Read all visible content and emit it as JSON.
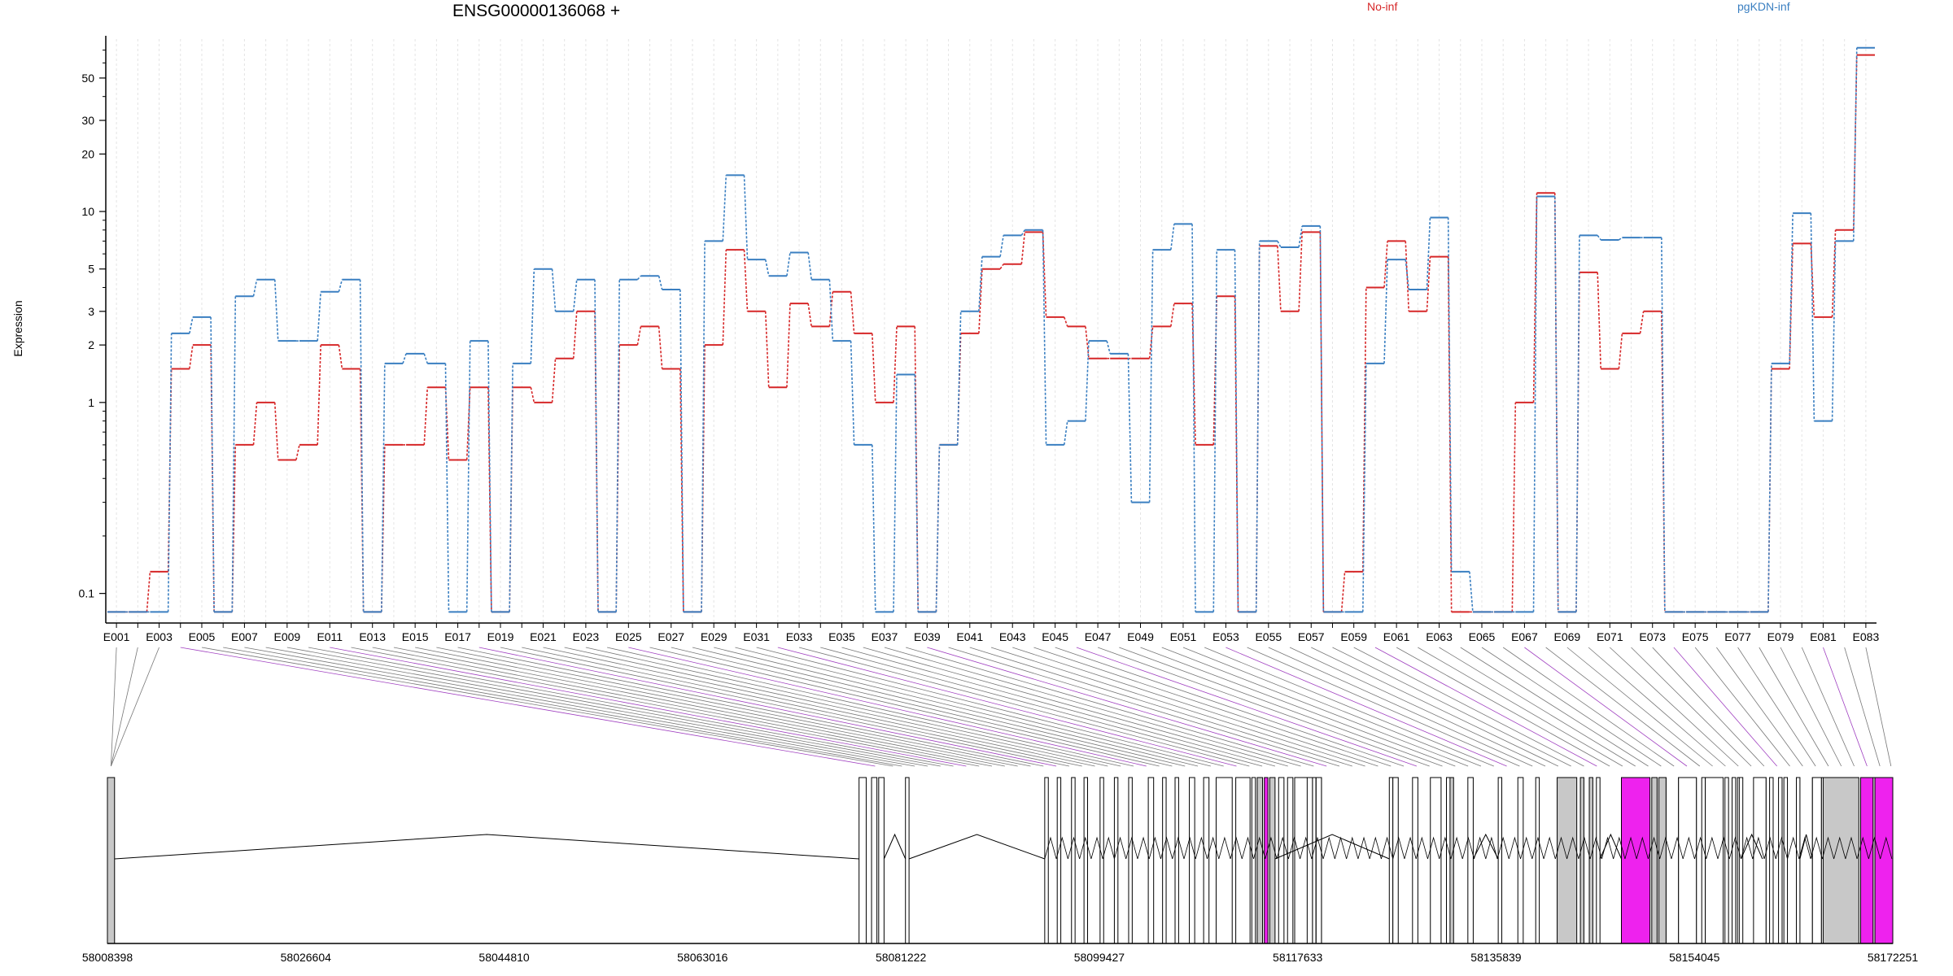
{
  "chart_data": {
    "type": "line",
    "title": "ENSG00000136068 +",
    "ylabel": "Expression",
    "yscale": "log",
    "yticks": [
      "0.1",
      "1",
      "2",
      "3",
      "5",
      "10",
      "20",
      "30",
      "50"
    ],
    "ylim": [
      0.07,
      80
    ],
    "grid": "vertical, light dashed",
    "legend_placement": "top",
    "categories": [
      "E001",
      "E002",
      "E003",
      "E004",
      "E005",
      "E006",
      "E007",
      "E008",
      "E009",
      "E010",
      "E011",
      "E012",
      "E013",
      "E014",
      "E015",
      "E016",
      "E017",
      "E018",
      "E019",
      "E020",
      "E021",
      "E022",
      "E023",
      "E024",
      "E025",
      "E026",
      "E027",
      "E028",
      "E029",
      "E030",
      "E031",
      "E032",
      "E033",
      "E034",
      "E035",
      "E036",
      "E037",
      "E038",
      "E039",
      "E040",
      "E041",
      "E042",
      "E043",
      "E044",
      "E045",
      "E046",
      "E047",
      "E048",
      "E049",
      "E050",
      "E051",
      "E052",
      "E053",
      "E054",
      "E055",
      "E056",
      "E057",
      "E058",
      "E059",
      "E060",
      "E061",
      "E062",
      "E063",
      "E064",
      "E065",
      "E066",
      "E067",
      "E068",
      "E069",
      "E070",
      "E071",
      "E072",
      "E073",
      "E074",
      "E075",
      "E076",
      "E077",
      "E078",
      "E079",
      "E080",
      "E081",
      "E082",
      "E083"
    ],
    "series": [
      {
        "name": "No-inf",
        "color": "#d62728",
        "values": [
          0.08,
          0.08,
          0.13,
          1.5,
          2.0,
          0.08,
          0.6,
          1.0,
          0.5,
          0.6,
          2.0,
          1.5,
          0.08,
          0.6,
          0.6,
          1.2,
          0.5,
          1.2,
          0.08,
          1.2,
          1.0,
          1.7,
          3.0,
          0.08,
          2.0,
          2.5,
          1.5,
          0.08,
          2.0,
          6.3,
          3.0,
          1.2,
          3.3,
          2.5,
          3.8,
          2.3,
          1.0,
          2.5,
          0.08,
          0.6,
          2.3,
          5.0,
          5.3,
          7.8,
          2.8,
          2.5,
          1.7,
          1.7,
          1.7,
          2.5,
          3.3,
          0.6,
          3.6,
          0.08,
          6.6,
          3.0,
          7.8,
          0.08,
          0.13,
          4.0,
          7.0,
          3.0,
          5.8,
          0.08,
          0.08,
          0.08,
          1.0,
          12.5,
          0.08,
          4.8,
          1.5,
          2.3,
          3.0,
          0.08,
          0.08,
          0.08,
          0.08,
          0.08,
          1.5,
          6.8,
          2.8,
          8.0,
          66
        ]
      },
      {
        "name": "pgKDN-inf",
        "color": "#3a7fc1",
        "values": [
          0.08,
          0.08,
          0.08,
          2.3,
          2.8,
          0.08,
          3.6,
          4.4,
          2.1,
          2.1,
          3.8,
          4.4,
          0.08,
          1.6,
          1.8,
          1.6,
          0.08,
          2.1,
          0.08,
          1.6,
          5.0,
          3.0,
          4.4,
          0.08,
          4.4,
          4.6,
          3.9,
          0.08,
          7.0,
          15.5,
          5.6,
          4.6,
          6.1,
          4.4,
          2.1,
          0.6,
          0.08,
          1.4,
          0.08,
          0.6,
          3.0,
          5.8,
          7.5,
          8.0,
          0.6,
          0.8,
          2.1,
          1.8,
          0.3,
          6.3,
          8.6,
          0.08,
          6.3,
          0.08,
          7.0,
          6.5,
          8.4,
          0.08,
          0.08,
          1.6,
          5.6,
          3.9,
          9.3,
          0.13,
          0.08,
          0.08,
          0.08,
          12.0,
          0.08,
          7.5,
          7.1,
          7.3,
          7.3,
          0.08,
          0.08,
          0.08,
          0.08,
          0.08,
          1.6,
          9.8,
          0.8,
          7.0,
          72
        ]
      }
    ],
    "genomic_axis_labels": [
      "58008398",
      "58026604",
      "58044810",
      "58063016",
      "58081222",
      "58099427",
      "58117633",
      "58135839",
      "58154045",
      "58172251"
    ]
  }
}
